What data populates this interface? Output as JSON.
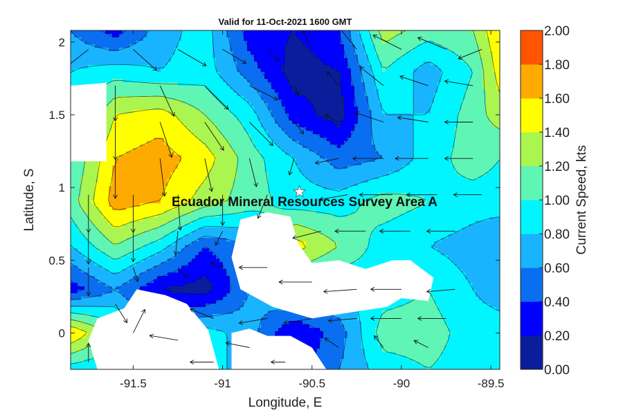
{
  "chart_data": {
    "type": "heatmap",
    "title": "Valid for 11-Oct-2021 1600 GMT",
    "xlabel": "Longitude, E",
    "ylabel": "Latitude, S",
    "xlim": [
      -91.85,
      -89.45
    ],
    "ylim": [
      -0.25,
      2.08
    ],
    "x_ticks": [
      -91.5,
      -91,
      -90.5,
      -90,
      -89.5
    ],
    "x_tick_labels": [
      "-91.5",
      "-91",
      "-90.5",
      "-90",
      "-89.5"
    ],
    "y_ticks": [
      0,
      0.5,
      1,
      1.5,
      2
    ],
    "y_tick_labels": [
      "0",
      "0.5",
      "1",
      "1.5",
      "2"
    ],
    "annotation": "Ecuador Mineral Resources Survey Area A",
    "marker": {
      "symbol": "star",
      "lon": -90.57,
      "lat": 0.97
    },
    "colorbar": {
      "label": "Current Speed, kts",
      "levels": [
        0.0,
        0.2,
        0.4,
        0.6,
        0.8,
        1.0,
        1.2,
        1.4,
        1.6,
        1.8,
        2.0
      ],
      "tick_labels": [
        "0.00",
        "0.20",
        "0.40",
        "0.60",
        "0.80",
        "1.00",
        "1.20",
        "1.40",
        "1.60",
        "1.80",
        "2.00"
      ],
      "colors": [
        "#0a1e9b",
        "#0000ff",
        "#0a6ef0",
        "#19b4ff",
        "#00f5ff",
        "#5ff5b4",
        "#aaf550",
        "#ffff00",
        "#ffaa00",
        "#ff5500"
      ]
    },
    "grid": {
      "lons": [
        -91.85,
        -91.6,
        -91.35,
        -91.1,
        -90.85,
        -90.6,
        -90.35,
        -90.1,
        -89.85,
        -89.6,
        -89.45
      ],
      "lats": [
        2.08,
        1.8,
        1.5,
        1.2,
        0.9,
        0.6,
        0.3,
        0.0,
        -0.25
      ],
      "speed": [
        [
          0.6,
          0.3,
          0.7,
          0.9,
          0.3,
          0.2,
          0.4,
          1.3,
          1.1,
          1.2,
          1.6
        ],
        [
          0.8,
          0.9,
          0.8,
          0.9,
          0.5,
          0.1,
          0.2,
          1.0,
          0.7,
          1.0,
          1.5
        ],
        [
          0.8,
          1.4,
          1.5,
          1.2,
          0.9,
          0.3,
          0.1,
          0.8,
          0.8,
          1.1,
          1.3
        ],
        [
          1.0,
          1.6,
          1.7,
          1.5,
          1.1,
          0.8,
          0.5,
          0.6,
          0.9,
          1.1,
          1.0
        ],
        [
          1.1,
          1.7,
          1.6,
          1.3,
          1.1,
          0.9,
          0.9,
          1.1,
          1.0,
          0.9,
          0.9
        ],
        [
          0.8,
          1.2,
          0.9,
          0.4,
          0.6,
          1.5,
          1.2,
          0.9,
          0.8,
          0.7,
          0.6
        ],
        [
          0.3,
          0.6,
          0.2,
          0.1,
          0.6,
          0.9,
          0.8,
          0.9,
          1.0,
          0.8,
          0.7
        ],
        [
          1.6,
          1.1,
          0.6,
          0.9,
          0.7,
          0.2,
          0.5,
          1.1,
          1.1,
          0.9,
          0.9
        ],
        [
          0.9,
          0.8,
          1.0,
          1.0,
          0.6,
          0.3,
          0.6,
          0.9,
          1.0,
          0.9,
          0.9
        ]
      ]
    },
    "masked_regions": [
      [
        [
          -91.85,
          1.7
        ],
        [
          -91.65,
          1.72
        ],
        [
          -91.65,
          1.18
        ],
        [
          -91.85,
          1.18
        ]
      ],
      [
        [
          -90.9,
          0.78
        ],
        [
          -90.75,
          0.83
        ],
        [
          -90.62,
          0.8
        ],
        [
          -90.58,
          0.62
        ],
        [
          -90.5,
          0.48
        ],
        [
          -90.35,
          0.5
        ],
        [
          -90.2,
          0.44
        ],
        [
          -90.05,
          0.5
        ],
        [
          -89.95,
          0.5
        ],
        [
          -89.82,
          0.38
        ],
        [
          -89.85,
          0.22
        ],
        [
          -90.0,
          0.24
        ],
        [
          -90.08,
          0.18
        ],
        [
          -90.4,
          0.12
        ],
        [
          -90.5,
          0.1
        ],
        [
          -90.72,
          0.18
        ],
        [
          -90.9,
          0.3
        ],
        [
          -90.95,
          0.52
        ]
      ],
      [
        [
          -91.7,
          0.1
        ],
        [
          -91.55,
          0.17
        ],
        [
          -91.48,
          0.3
        ],
        [
          -91.32,
          0.26
        ],
        [
          -91.2,
          0.2
        ],
        [
          -91.08,
          0.02
        ],
        [
          -91.02,
          -0.25
        ],
        [
          -91.7,
          -0.25
        ],
        [
          -91.75,
          -0.05
        ]
      ],
      [
        [
          -90.95,
          0.0
        ],
        [
          -90.85,
          0.03
        ],
        [
          -90.75,
          -0.02
        ],
        [
          -90.62,
          -0.02
        ],
        [
          -90.5,
          -0.1
        ],
        [
          -90.42,
          -0.25
        ],
        [
          -90.95,
          -0.25
        ]
      ]
    ],
    "vectors": [
      {
        "lon": -91.75,
        "lat": 1.95,
        "u": -0.1,
        "v": -0.08
      },
      {
        "lon": -91.5,
        "lat": 1.95,
        "u": 0.1,
        "v": -0.09
      },
      {
        "lon": -91.25,
        "lat": 1.95,
        "u": 0.12,
        "v": -0.07
      },
      {
        "lon": -91.0,
        "lat": 1.95,
        "u": 0.1,
        "v": -0.06
      },
      {
        "lon": -90.75,
        "lat": 1.95,
        "u": 0.05,
        "v": -0.05
      },
      {
        "lon": -90.5,
        "lat": 1.95,
        "u": -0.04,
        "v": 0.08
      },
      {
        "lon": -90.25,
        "lat": 1.95,
        "u": -0.08,
        "v": 0.1
      },
      {
        "lon": -90.0,
        "lat": 1.95,
        "u": -0.12,
        "v": 0.06
      },
      {
        "lon": -89.75,
        "lat": 1.95,
        "u": -0.12,
        "v": 0.05
      },
      {
        "lon": -89.55,
        "lat": 1.95,
        "u": -0.1,
        "v": -0.04
      },
      {
        "lon": -91.6,
        "lat": 1.7,
        "u": 0.0,
        "v": -0.15
      },
      {
        "lon": -91.35,
        "lat": 1.7,
        "u": 0.06,
        "v": -0.13
      },
      {
        "lon": -91.1,
        "lat": 1.7,
        "u": 0.1,
        "v": -0.1
      },
      {
        "lon": -90.85,
        "lat": 1.7,
        "u": 0.12,
        "v": -0.06
      },
      {
        "lon": -90.6,
        "lat": 1.7,
        "u": 0.02,
        "v": -0.04
      },
      {
        "lon": -90.35,
        "lat": 1.7,
        "u": -0.05,
        "v": 0.06
      },
      {
        "lon": -90.1,
        "lat": 1.7,
        "u": -0.1,
        "v": 0.08
      },
      {
        "lon": -89.85,
        "lat": 1.7,
        "u": -0.12,
        "v": 0.04
      },
      {
        "lon": -89.6,
        "lat": 1.7,
        "u": -0.12,
        "v": 0.02
      },
      {
        "lon": -91.6,
        "lat": 1.45,
        "u": 0.0,
        "v": -0.16
      },
      {
        "lon": -91.35,
        "lat": 1.45,
        "u": 0.05,
        "v": -0.15
      },
      {
        "lon": -91.1,
        "lat": 1.45,
        "u": 0.08,
        "v": -0.12
      },
      {
        "lon": -90.85,
        "lat": 1.45,
        "u": 0.1,
        "v": -0.1
      },
      {
        "lon": -90.6,
        "lat": 1.45,
        "u": 0.04,
        "v": -0.05
      },
      {
        "lon": -90.35,
        "lat": 1.45,
        "u": -0.06,
        "v": 0.03
      },
      {
        "lon": -90.1,
        "lat": 1.45,
        "u": -0.12,
        "v": 0.04
      },
      {
        "lon": -89.85,
        "lat": 1.45,
        "u": -0.13,
        "v": 0.02
      },
      {
        "lon": -89.6,
        "lat": 1.45,
        "u": -0.12,
        "v": 0.0
      },
      {
        "lon": -91.6,
        "lat": 1.2,
        "u": 0.0,
        "v": -0.17
      },
      {
        "lon": -91.35,
        "lat": 1.2,
        "u": 0.02,
        "v": -0.16
      },
      {
        "lon": -91.1,
        "lat": 1.2,
        "u": 0.03,
        "v": -0.14
      },
      {
        "lon": -90.85,
        "lat": 1.2,
        "u": 0.03,
        "v": -0.12
      },
      {
        "lon": -90.6,
        "lat": 1.2,
        "u": -0.02,
        "v": -0.07
      },
      {
        "lon": -90.35,
        "lat": 1.2,
        "u": -0.1,
        "v": -0.02
      },
      {
        "lon": -90.1,
        "lat": 1.2,
        "u": -0.13,
        "v": 0.0
      },
      {
        "lon": -89.85,
        "lat": 1.2,
        "u": -0.14,
        "v": 0.0
      },
      {
        "lon": -89.6,
        "lat": 1.2,
        "u": -0.12,
        "v": 0.0
      },
      {
        "lon": -91.75,
        "lat": 0.95,
        "u": 0.0,
        "v": -0.16
      },
      {
        "lon": -91.5,
        "lat": 0.95,
        "u": 0.0,
        "v": -0.16
      },
      {
        "lon": -91.25,
        "lat": 0.95,
        "u": 0.01,
        "v": -0.15
      },
      {
        "lon": -91.0,
        "lat": 0.95,
        "u": 0.0,
        "v": -0.13
      },
      {
        "lon": -90.75,
        "lat": 0.95,
        "u": -0.04,
        "v": -0.1
      },
      {
        "lon": -90.3,
        "lat": 0.95,
        "u": -0.12,
        "v": -0.02
      },
      {
        "lon": -90.05,
        "lat": 0.95,
        "u": -0.14,
        "v": 0.0
      },
      {
        "lon": -89.8,
        "lat": 0.95,
        "u": -0.13,
        "v": 0.0
      },
      {
        "lon": -89.55,
        "lat": 0.95,
        "u": -0.12,
        "v": 0.0
      },
      {
        "lon": -91.75,
        "lat": 0.7,
        "u": 0.0,
        "v": -0.14
      },
      {
        "lon": -91.5,
        "lat": 0.7,
        "u": 0.0,
        "v": -0.13
      },
      {
        "lon": -91.25,
        "lat": 0.7,
        "u": -0.01,
        "v": -0.1
      },
      {
        "lon": -91.0,
        "lat": 0.7,
        "u": -0.03,
        "v": -0.06
      },
      {
        "lon": -90.45,
        "lat": 0.7,
        "u": -0.12,
        "v": -0.03
      },
      {
        "lon": -90.2,
        "lat": 0.7,
        "u": -0.13,
        "v": 0.0
      },
      {
        "lon": -89.95,
        "lat": 0.7,
        "u": -0.13,
        "v": 0.0
      },
      {
        "lon": -89.7,
        "lat": 0.7,
        "u": -0.12,
        "v": 0.0
      },
      {
        "lon": -91.75,
        "lat": 0.45,
        "u": 0.0,
        "v": -0.12
      },
      {
        "lon": -91.5,
        "lat": 0.45,
        "u": 0.02,
        "v": -0.06
      },
      {
        "lon": -91.25,
        "lat": 0.45,
        "u": 0.04,
        "v": -0.04
      },
      {
        "lon": -91.0,
        "lat": 0.45,
        "u": -0.05,
        "v": 0.02
      },
      {
        "lon": -90.75,
        "lat": 0.45,
        "u": -0.12,
        "v": 0.0
      },
      {
        "lon": -90.5,
        "lat": 0.35,
        "u": -0.14,
        "v": 0.0
      },
      {
        "lon": -90.25,
        "lat": 0.3,
        "u": -0.14,
        "v": -0.01
      },
      {
        "lon": -90.0,
        "lat": 0.3,
        "u": -0.13,
        "v": 0.0
      },
      {
        "lon": -89.7,
        "lat": 0.3,
        "u": -0.12,
        "v": -0.01
      },
      {
        "lon": -91.6,
        "lat": 0.2,
        "u": 0.05,
        "v": -0.08
      },
      {
        "lon": -91.05,
        "lat": 0.1,
        "u": -0.1,
        "v": 0.04
      },
      {
        "lon": -90.75,
        "lat": 0.1,
        "u": -0.12,
        "v": -0.02
      },
      {
        "lon": -90.5,
        "lat": 0.1,
        "u": -0.12,
        "v": -0.02
      },
      {
        "lon": -90.25,
        "lat": 0.1,
        "u": -0.12,
        "v": -0.01
      },
      {
        "lon": -90.0,
        "lat": 0.1,
        "u": -0.13,
        "v": 0.0
      },
      {
        "lon": -89.75,
        "lat": 0.1,
        "u": -0.12,
        "v": 0.0
      },
      {
        "lon": -91.5,
        "lat": 0.0,
        "u": 0.05,
        "v": 0.1
      },
      {
        "lon": -91.25,
        "lat": -0.05,
        "u": -0.12,
        "v": 0.02
      },
      {
        "lon": -90.85,
        "lat": -0.1,
        "u": -0.1,
        "v": 0.02
      },
      {
        "lon": -90.35,
        "lat": -0.1,
        "u": -0.06,
        "v": 0.04
      },
      {
        "lon": -90.1,
        "lat": -0.1,
        "u": -0.04,
        "v": 0.05
      },
      {
        "lon": -89.85,
        "lat": -0.1,
        "u": -0.06,
        "v": 0.03
      },
      {
        "lon": -91.75,
        "lat": -0.2,
        "u": 0.0,
        "v": 0.08
      },
      {
        "lon": -91.05,
        "lat": -0.2,
        "u": -0.1,
        "v": 0.0
      },
      {
        "lon": -90.65,
        "lat": -0.2,
        "u": -0.06,
        "v": 0.0
      }
    ]
  }
}
